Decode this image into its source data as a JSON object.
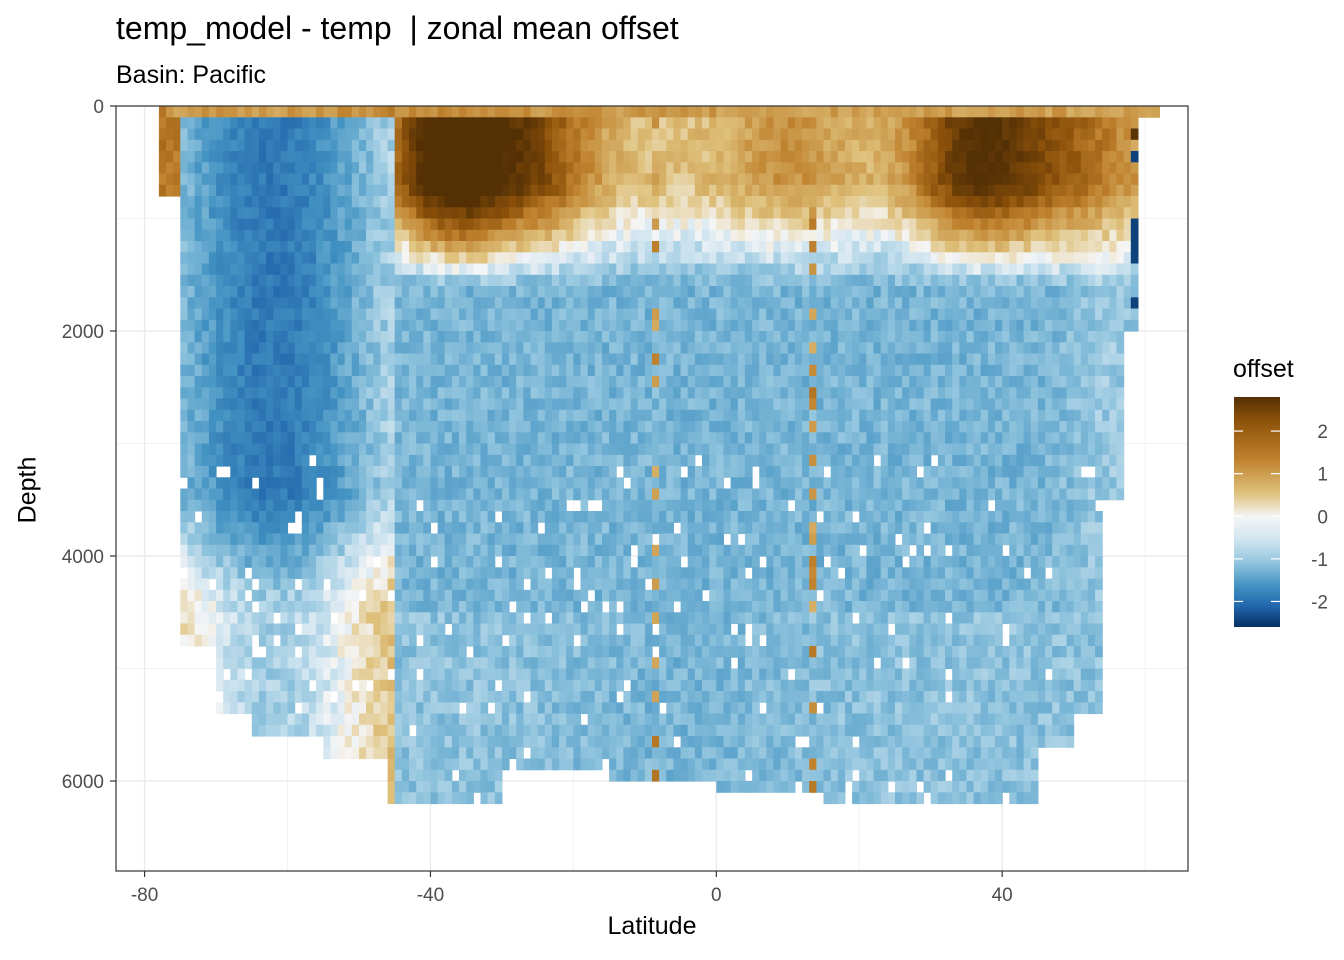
{
  "chart_data": {
    "type": "heatmap",
    "title": "temp_model - temp  | zonal mean offset",
    "subtitle": "Basin: Pacific",
    "xlabel": "Latitude",
    "ylabel": "Depth",
    "xlim": [
      -84,
      66
    ],
    "ylim": [
      0,
      6800
    ],
    "y_reversed": true,
    "x_ticks": [
      {
        "value": -80,
        "label": "-80"
      },
      {
        "value": -40,
        "label": "-40"
      },
      {
        "value": 0,
        "label": "0"
      },
      {
        "value": 40,
        "label": "40"
      }
    ],
    "y_ticks": [
      {
        "value": 0,
        "label": "0"
      },
      {
        "value": 2000,
        "label": "2000"
      },
      {
        "value": 4000,
        "label": "4000"
      },
      {
        "value": 6000,
        "label": "6000"
      }
    ],
    "legend": {
      "title": "offset",
      "position": "right",
      "range": [
        -2.6,
        2.8
      ],
      "ticks": [
        {
          "value": 2,
          "label": "2"
        },
        {
          "value": 1,
          "label": "1"
        },
        {
          "value": 0,
          "label": "0"
        },
        {
          "value": -1,
          "label": "-1"
        },
        {
          "value": -2,
          "label": "-2"
        }
      ]
    },
    "field_summary": {
      "surface_layer_0_1200m": "positive offset 1 to 2.8 between 45S and 55N",
      "southern_ocean_80S_45S": "negative offset -1 to -2 from surface to 3500m",
      "deep_ocean_below_2000m": "negative offset about -0.5 to -1",
      "near_60N": "mixed strong anomalies -2.5 to 2.8"
    }
  }
}
